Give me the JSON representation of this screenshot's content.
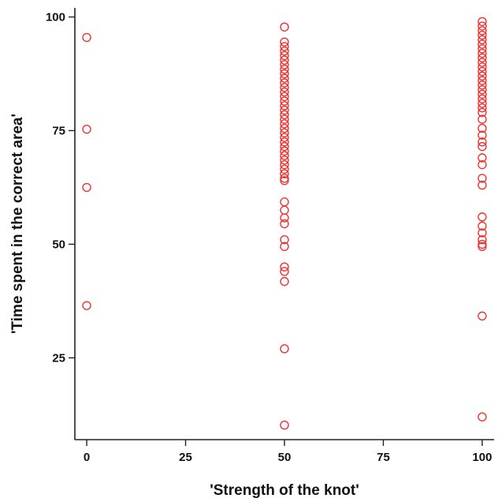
{
  "chart_data": {
    "type": "scatter",
    "title": "",
    "xlabel": "'Strength of the knot'",
    "ylabel": "'Time spent in the correct area'",
    "xlim": [
      -3,
      103
    ],
    "ylim": [
      7,
      102
    ],
    "xticks": [
      0,
      25,
      50,
      75,
      100
    ],
    "yticks": [
      25,
      50,
      75,
      100
    ],
    "grid": false,
    "marker": "open-circle",
    "marker_color": "#ee3333",
    "series": [
      {
        "points": [
          [
            0,
            95.5
          ],
          [
            0,
            75.3
          ],
          [
            0,
            62.5
          ],
          [
            0,
            36.5
          ],
          [
            50,
            97.8
          ],
          [
            50,
            94.5
          ],
          [
            50,
            93.5
          ],
          [
            50,
            92.5
          ],
          [
            50,
            91.5
          ],
          [
            50,
            90.5
          ],
          [
            50,
            89.5
          ],
          [
            50,
            88.5
          ],
          [
            50,
            87.5
          ],
          [
            50,
            86.5
          ],
          [
            50,
            85.5
          ],
          [
            50,
            84.5
          ],
          [
            50,
            83.5
          ],
          [
            50,
            82.5
          ],
          [
            50,
            81.5
          ],
          [
            50,
            80.5
          ],
          [
            50,
            79.5
          ],
          [
            50,
            78.5
          ],
          [
            50,
            77.5
          ],
          [
            50,
            76.5
          ],
          [
            50,
            75.5
          ],
          [
            50,
            74.5
          ],
          [
            50,
            73.5
          ],
          [
            50,
            72.5
          ],
          [
            50,
            71.5
          ],
          [
            50,
            70.5
          ],
          [
            50,
            69.5
          ],
          [
            50,
            68.5
          ],
          [
            50,
            67.5
          ],
          [
            50,
            66.5
          ],
          [
            50,
            65.5
          ],
          [
            50,
            64.5
          ],
          [
            50,
            64.0
          ],
          [
            50,
            59.3
          ],
          [
            50,
            57.5
          ],
          [
            50,
            55.8
          ],
          [
            50,
            54.5
          ],
          [
            50,
            51.0
          ],
          [
            50,
            49.5
          ],
          [
            50,
            45.0
          ],
          [
            50,
            44.0
          ],
          [
            50,
            41.8
          ],
          [
            50,
            27.0
          ],
          [
            50,
            10.2
          ],
          [
            100,
            99.0
          ],
          [
            100,
            98.0
          ],
          [
            100,
            97.0
          ],
          [
            100,
            96.0
          ],
          [
            100,
            95.0
          ],
          [
            100,
            94.0
          ],
          [
            100,
            93.0
          ],
          [
            100,
            92.0
          ],
          [
            100,
            91.0
          ],
          [
            100,
            90.0
          ],
          [
            100,
            89.0
          ],
          [
            100,
            88.0
          ],
          [
            100,
            87.0
          ],
          [
            100,
            86.0
          ],
          [
            100,
            85.0
          ],
          [
            100,
            84.0
          ],
          [
            100,
            83.0
          ],
          [
            100,
            82.0
          ],
          [
            100,
            81.0
          ],
          [
            100,
            80.0
          ],
          [
            100,
            79.0
          ],
          [
            100,
            77.5
          ],
          [
            100,
            75.5
          ],
          [
            100,
            74.0
          ],
          [
            100,
            72.5
          ],
          [
            100,
            71.5
          ],
          [
            100,
            69.0
          ],
          [
            100,
            67.5
          ],
          [
            100,
            64.5
          ],
          [
            100,
            63.0
          ],
          [
            100,
            56.0
          ],
          [
            100,
            54.0
          ],
          [
            100,
            52.5
          ],
          [
            100,
            51.0
          ],
          [
            100,
            50.0
          ],
          [
            100,
            49.5
          ],
          [
            100,
            34.2
          ],
          [
            100,
            12.0
          ]
        ]
      }
    ]
  }
}
